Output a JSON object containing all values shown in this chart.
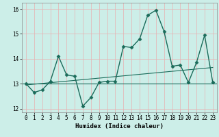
{
  "xlabel": "Humidex (Indice chaleur)",
  "x": [
    0,
    1,
    2,
    3,
    4,
    5,
    6,
    7,
    8,
    9,
    10,
    11,
    12,
    13,
    14,
    15,
    16,
    17,
    18,
    19,
    20,
    21,
    22,
    23
  ],
  "y_main": [
    13.0,
    12.65,
    12.75,
    13.1,
    14.1,
    13.35,
    13.3,
    12.1,
    12.45,
    13.05,
    13.1,
    13.1,
    14.5,
    14.45,
    14.8,
    15.75,
    15.95,
    15.1,
    13.7,
    13.75,
    13.05,
    13.85,
    14.95,
    13.05
  ],
  "trend_y": [
    12.95,
    13.65
  ],
  "flat_line_y": 13.0,
  "ylim": [
    11.85,
    16.25
  ],
  "xlim": [
    -0.5,
    23.5
  ],
  "yticks": [
    12,
    13,
    14,
    15,
    16
  ],
  "xticks": [
    0,
    1,
    2,
    3,
    4,
    5,
    6,
    7,
    8,
    9,
    10,
    11,
    12,
    13,
    14,
    15,
    16,
    17,
    18,
    19,
    20,
    21,
    22,
    23
  ],
  "xtick_labels": [
    "0",
    "1",
    "2",
    "3",
    "4",
    "5",
    "6",
    "7",
    "8",
    "9",
    "10",
    "11",
    "12",
    "13",
    "14",
    "15",
    "16",
    "17",
    "18",
    "19",
    "20",
    "21",
    "22",
    "23"
  ],
  "line_color": "#1a6b5a",
  "bg_color": "#cceee8",
  "grid_color": "#e8b0b0",
  "marker": "D",
  "markersize": 2.5,
  "linewidth": 1.0,
  "tick_fontsize": 5.5,
  "xlabel_fontsize": 6.5
}
